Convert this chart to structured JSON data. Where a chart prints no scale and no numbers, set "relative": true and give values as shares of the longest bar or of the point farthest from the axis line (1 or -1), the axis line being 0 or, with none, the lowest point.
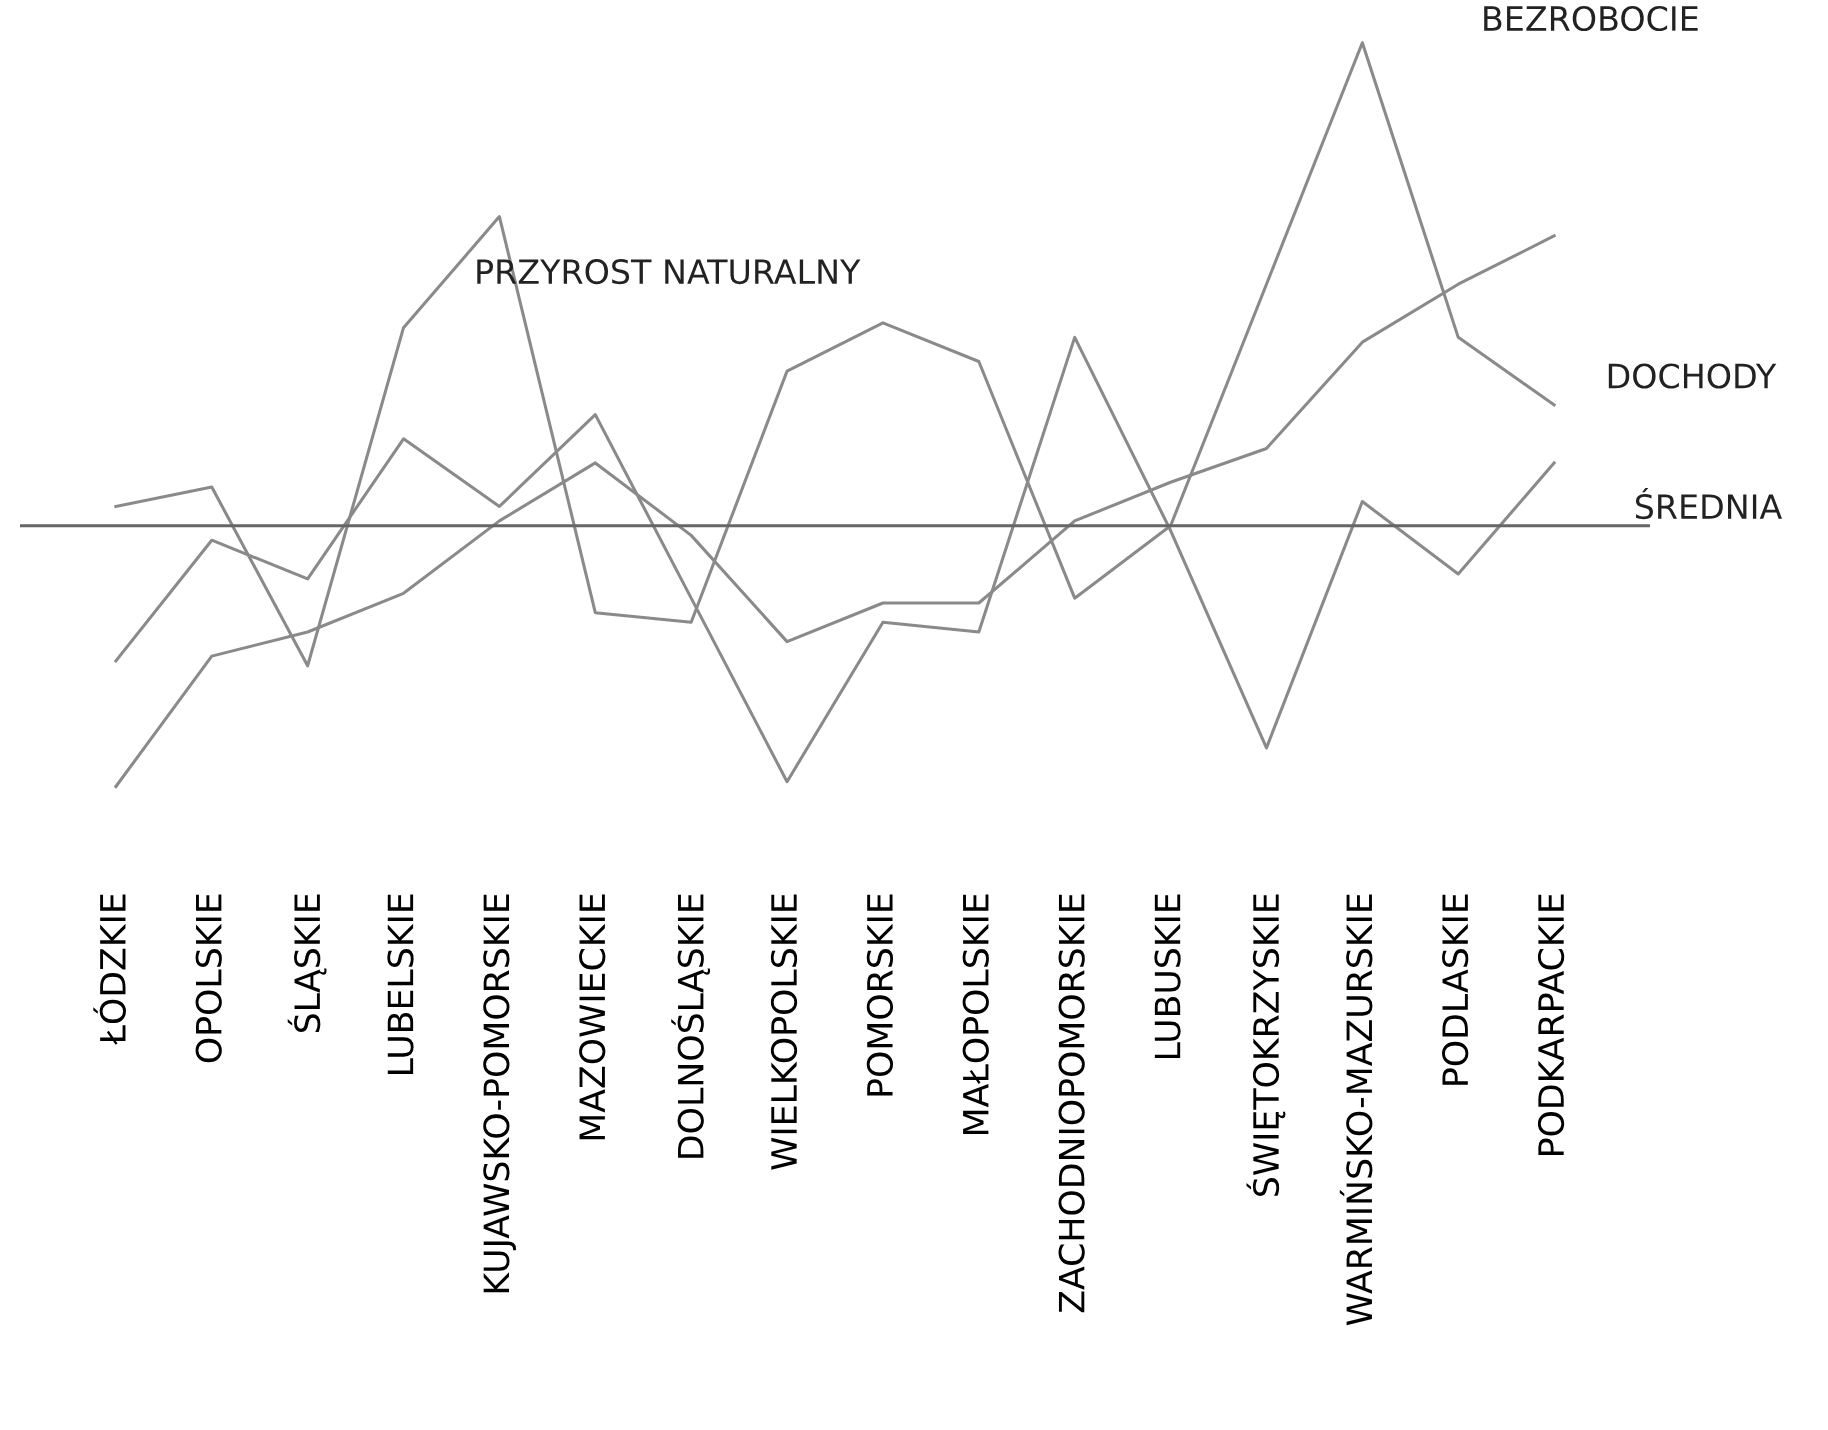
{
  "chart_data": {
    "type": "line",
    "relative": true,
    "categories": [
      "ŁÓDZKIE",
      "OPOLSKIE",
      "ŚLĄSKIE",
      "LUBELSKIE",
      "KUJAWSKO-POMORSKIE",
      "MAZOWIECKIE",
      "DOLNOŚLĄSKIE",
      "WIELKOPOLSKIE",
      "POMORSKIE",
      "MAŁOPOLSKIE",
      "ZACHODNIOPOMORSKIE",
      "LUBUSKIE",
      "ŚWIĘTOKRZYSKIE",
      "WARMIŃSKO-MAZURSKIE",
      "PODLASKIE",
      "PODKARPACKIE"
    ],
    "series": [
      {
        "color": "#8a8a8a",
        "values": [
          0.04,
          0.08,
          -0.29,
          0.41,
          0.64,
          -0.18,
          -0.2,
          0.32,
          0.42,
          0.34,
          -0.15,
          0,
          0.5,
          1,
          0.39,
          0.25
        ]
      },
      {
        "color": "#8a8a8a",
        "values": [
          -0.28,
          -0.03,
          -0.11,
          0.18,
          0.04,
          0.23,
          -0.15,
          -0.53,
          -0.2,
          -0.22,
          0.39,
          -0.01,
          -0.46,
          0.05,
          -0.1,
          0.13
        ]
      },
      {
        "color": "#8a8a8a",
        "values": [
          -0.54,
          -0.27,
          -0.22,
          -0.14,
          0.01,
          0.13,
          -0.02,
          -0.24,
          -0.16,
          -0.16,
          0.01,
          0.09,
          0.16,
          0.38,
          0.5,
          0.6
        ]
      }
    ],
    "ref_lines": [
      {
        "axis": "y",
        "value": 0,
        "label": "ŚREDNIA",
        "color": "#666666"
      }
    ],
    "annotations": [
      "BEZROBOCIE",
      "PRZYROST NATURALNY",
      "DOCHODY"
    ],
    "line_style": "solid",
    "marker": "none",
    "grid": false,
    "legend": false
  }
}
